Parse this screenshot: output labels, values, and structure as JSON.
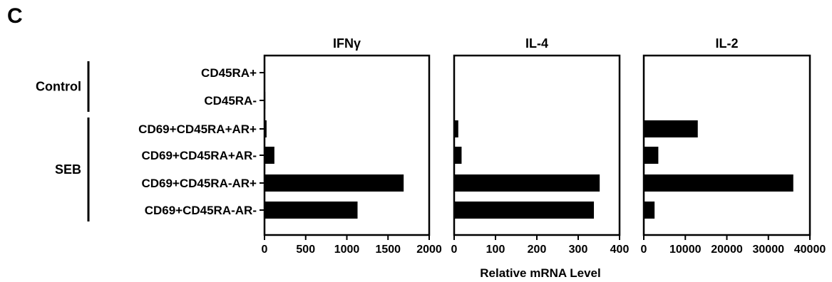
{
  "figure": {
    "panel_label": "C",
    "shared_xlabel": "Relative mRNA Level",
    "groups": [
      {
        "label": "Control",
        "rows": [
          0,
          1
        ]
      },
      {
        "label": "SEB",
        "rows": [
          2,
          3,
          4,
          5
        ]
      }
    ]
  },
  "chart_data": [
    {
      "type": "bar",
      "orientation": "horizontal",
      "title": "IFNγ",
      "categories": [
        "CD45RA+",
        "CD45RA-",
        "CD69+CD45RA+AR+",
        "CD69+CD45RA+AR-",
        "CD69+CD45RA-AR+",
        "CD69+CD45RA-AR-"
      ],
      "values": [
        3,
        10,
        25,
        120,
        1690,
        1130
      ],
      "xlim": [
        0,
        2000
      ],
      "xticks": [
        0,
        500,
        1000,
        1500,
        2000
      ],
      "xlabel": "Relative mRNA Level",
      "grid": false
    },
    {
      "type": "bar",
      "orientation": "horizontal",
      "title": "IL-4",
      "categories": [
        "CD45RA+",
        "CD45RA-",
        "CD69+CD45RA+AR+",
        "CD69+CD45RA+AR-",
        "CD69+CD45RA-AR+",
        "CD69+CD45RA-AR-"
      ],
      "values": [
        0,
        0,
        10,
        18,
        352,
        338
      ],
      "xlim": [
        0,
        400
      ],
      "xticks": [
        0,
        100,
        200,
        300,
        400
      ],
      "xlabel": "Relative mRNA Level",
      "grid": false
    },
    {
      "type": "bar",
      "orientation": "horizontal",
      "title": "IL-2",
      "categories": [
        "CD45RA+",
        "CD45RA-",
        "CD69+CD45RA+AR+",
        "CD69+CD45RA+AR-",
        "CD69+CD45RA-AR+",
        "CD69+CD45RA-AR-"
      ],
      "values": [
        0,
        0,
        13000,
        3500,
        36000,
        2600
      ],
      "xlim": [
        0,
        40000
      ],
      "xticks": [
        0,
        10000,
        20000,
        30000,
        40000
      ],
      "xlabel": "Relative mRNA Level",
      "grid": false
    }
  ]
}
